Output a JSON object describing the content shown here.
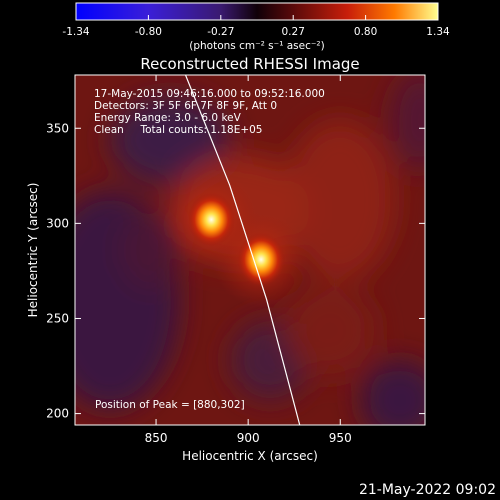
{
  "colorbar": {
    "tick_labels": [
      "-1.34",
      "-0.80",
      "-0.27",
      "0.27",
      "0.80",
      "1.34"
    ],
    "unit_label": "(photons cm⁻² s⁻¹ asec⁻²)",
    "range": [
      -1.34,
      1.34
    ]
  },
  "image": {
    "title": "Reconstructed RHESSI Image",
    "info_lines": [
      "17-May-2015 09:46:16.000 to 09:52:16.000",
      "Detectors: 3F 5F 6F 7F 8F 9F, Att 0",
      "Energy Range: 3.0 - 6.0 keV",
      "Clean     Total counts: 1.18E+05"
    ],
    "peak_label": "Position of Peak = [880,302]",
    "peak_position": [
      880,
      302
    ],
    "footer_timestamp": "21-May-2022 09:02"
  },
  "axes": {
    "xlabel": "Heliocentric X (arcsec)",
    "ylabel": "Heliocentric Y (arcsec)",
    "xlim": [
      806,
      996
    ],
    "ylim": [
      194,
      378
    ],
    "xticks": [
      850,
      900,
      950
    ],
    "yticks": [
      200,
      250,
      300,
      350
    ],
    "xtick_labels": [
      "850",
      "900",
      "950"
    ],
    "ytick_labels": [
      "200",
      "250",
      "300",
      "350"
    ]
  },
  "sources": [
    {
      "x": 880,
      "y": 302
    },
    {
      "x": 907,
      "y": 281
    }
  ],
  "limb_points": [
    [
      866,
      378
    ],
    [
      890,
      320
    ],
    [
      910,
      260
    ],
    [
      928,
      194
    ]
  ]
}
